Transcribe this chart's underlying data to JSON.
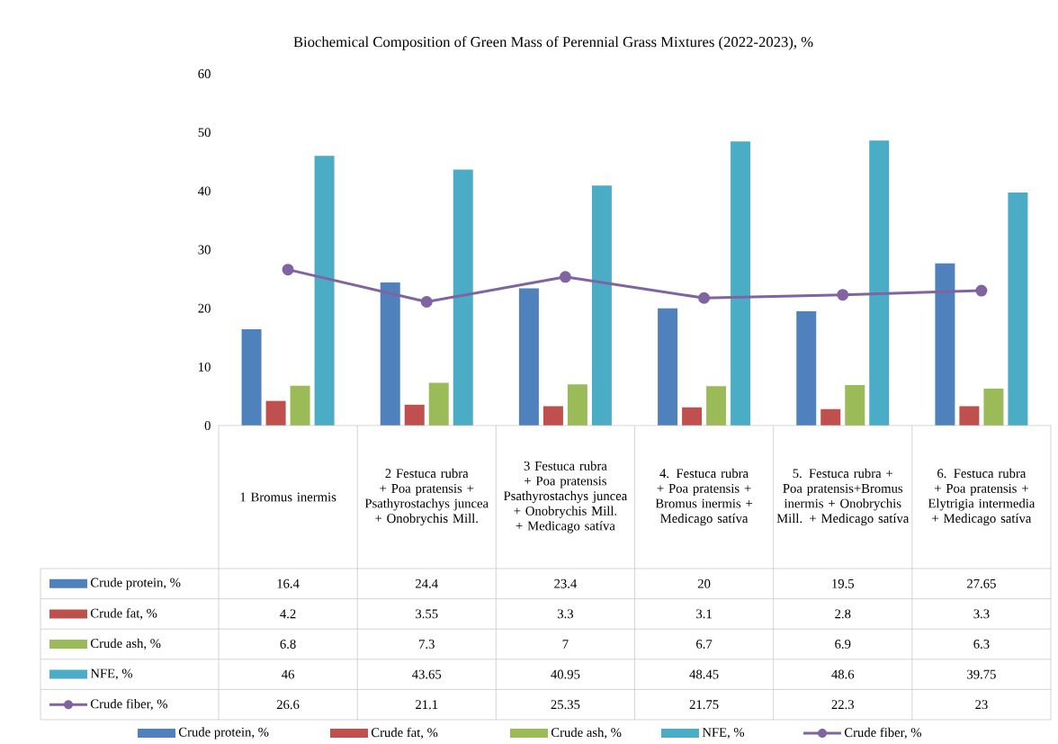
{
  "chart_data": {
    "type": "bar",
    "title": "Biochemical Composition of Green Mass of Perennial Grass Mixtures (2022-2023), %",
    "categories": [
      "1 Bromus inermis",
      "2   Festuca rubra + Poa pratensis + Psathyrostachys juncea + Onobrychis Mill.",
      "3 Festuca rubra + Poa pratensis Psathyrostachys juncea + Onobrychis Mill. + Medicago satíva",
      "4. Festuca rubra + Poa pratensis + Bromus inermis + Medicago satíva",
      "5. Festuca rubra + Poa pratensis+Bromus inermis + Onobrychis Mill. + Medicago satíva",
      "6. Festuca rubra + Poa pratensis + Elytrigia intermedia + Medicago satíva"
    ],
    "series": [
      {
        "name": "Crude protein, %",
        "color": "#4f81bd",
        "values": [
          16.4,
          24.4,
          23.4,
          20,
          19.5,
          27.65
        ]
      },
      {
        "name": "Crude fat, %",
        "color": "#c0504d",
        "values": [
          4.2,
          3.55,
          3.3,
          3.1,
          2.8,
          3.3
        ]
      },
      {
        "name": "Crude ash, %",
        "color": "#9bbb59",
        "values": [
          6.8,
          7.3,
          7,
          6.7,
          6.9,
          6.3
        ]
      },
      {
        "name": "NFE, %",
        "color": "#4bacc6",
        "values": [
          46,
          43.65,
          40.95,
          48.45,
          48.6,
          39.75
        ]
      },
      {
        "name": "Crude fiber, %",
        "color": "#8064a2",
        "type": "line",
        "marker": "circle",
        "values": [
          26.6,
          21.1,
          25.35,
          21.75,
          22.3,
          23
        ]
      }
    ],
    "ylim": [
      0,
      60
    ],
    "yticks": [
      0,
      10,
      20,
      30,
      40,
      50,
      60
    ],
    "data_labels": true,
    "legend": "bottom",
    "grid": false
  }
}
